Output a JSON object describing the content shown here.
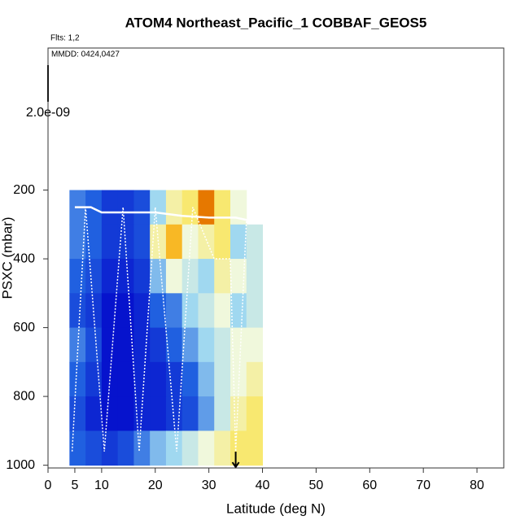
{
  "chart_data": {
    "type": "heatmap",
    "title": "ATOM4 Northeast_Pacific_1 COBBAF_GEOS5",
    "subtitle": "Flts: 1,2",
    "annotation": "MMDD: 0424,0427",
    "xlabel": "Latitude (deg N)",
    "ylabel": "PSXC (mbar)",
    "xlim": [
      0,
      85
    ],
    "xticks": [
      0,
      5,
      10,
      20,
      30,
      40,
      50,
      60,
      70,
      80
    ],
    "ylim": [
      1008,
      -213
    ],
    "yticks": [
      200,
      400,
      600,
      800,
      1000
    ],
    "colorbar_ticks": [
      {
        "value": 2e-09,
        "label": "2.0e-09"
      }
    ],
    "clim": [
      0,
      2e-09
    ],
    "x_edges": [
      4,
      7,
      10,
      13,
      16,
      19,
      22,
      25,
      28,
      31,
      34,
      37,
      40
    ],
    "y_edges": [
      200,
      300,
      400,
      500,
      600,
      700,
      800,
      900,
      1000
    ],
    "z": [
      [
        6e-10,
        5e-10,
        3e-10,
        3e-10,
        4e-10,
        9e-10,
        1.2e-09,
        1.3e-09,
        1.7e-09,
        1.3e-09,
        1.1e-09,
        null
      ],
      [
        6e-10,
        5e-10,
        3e-10,
        3e-10,
        4e-10,
        1.2e-09,
        1.5e-09,
        1.1e-09,
        1.2e-09,
        1.3e-09,
        9e-10,
        1e-09
      ],
      [
        5e-10,
        4e-10,
        2e-10,
        2e-10,
        3e-10,
        8e-10,
        1.1e-09,
        1e-09,
        9e-10,
        1.2e-09,
        1.1e-09,
        1e-09
      ],
      [
        4e-10,
        3e-10,
        1e-10,
        1e-10,
        2e-10,
        5e-10,
        6e-10,
        9e-10,
        1e-09,
        1.1e-09,
        9e-10,
        1e-09
      ],
      [
        6e-10,
        4e-10,
        1e-10,
        1e-10,
        2e-10,
        3e-10,
        5e-10,
        7e-10,
        9e-10,
        1e-09,
        1.1e-09,
        1.1e-09
      ],
      [
        5e-10,
        3e-10,
        1e-10,
        1e-10,
        2e-10,
        2e-10,
        3e-10,
        5e-10,
        8e-10,
        1e-09,
        1.1e-09,
        1.2e-09
      ],
      [
        4e-10,
        2e-10,
        1e-10,
        1e-10,
        2e-10,
        2e-10,
        3e-10,
        4e-10,
        7e-10,
        1e-09,
        1.2e-09,
        1.3e-09
      ],
      [
        5e-10,
        4e-10,
        3e-10,
        4e-10,
        6e-10,
        8e-10,
        9e-10,
        1e-09,
        1.1e-09,
        1.2e-09,
        1.3e-09,
        1.3e-09
      ]
    ],
    "series": [
      {
        "color": "#ffffff",
        "dash": false,
        "x": [
          5,
          8,
          10,
          15,
          20,
          25,
          30,
          35,
          38
        ],
        "values": [
          250,
          250,
          265,
          265,
          265,
          275,
          280,
          280,
          290
        ]
      },
      {
        "color": "#ffffff",
        "dash": true,
        "x": [
          4.5,
          7,
          10.5,
          14,
          17,
          20,
          24,
          27,
          31,
          34,
          35,
          37
        ],
        "values": [
          960,
          250,
          960,
          250,
          960,
          250,
          960,
          250,
          400,
          400,
          960,
          290
        ]
      }
    ],
    "arrow_x": 35
  }
}
